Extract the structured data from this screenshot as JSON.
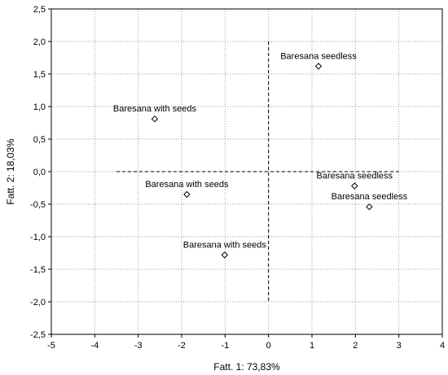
{
  "chart_data": {
    "type": "scatter",
    "xlabel": "Fatt. 1: 73,83%",
    "ylabel": "Fatt. 2: 18,03%",
    "xlim": [
      -5,
      4
    ],
    "ylim": [
      -2.5,
      2.5
    ],
    "x_ticks": [
      -5,
      -4,
      -3,
      -2,
      -1,
      0,
      1,
      2,
      3,
      4
    ],
    "y_ticks": [
      2.5,
      2.0,
      1.5,
      1.0,
      0.5,
      0.0,
      -0.5,
      -1.0,
      -1.5,
      -2.0,
      -2.5
    ],
    "x_tick_labels": [
      "-5",
      "-4",
      "-3",
      "-2",
      "-1",
      "0",
      "1",
      "2",
      "3",
      "4"
    ],
    "y_tick_labels": [
      "2,5",
      "2,0",
      "1,5",
      "1,0",
      "0,5",
      "0,0",
      "-0,5",
      "-1,0",
      "-1,5",
      "-2,0",
      "-2,5"
    ],
    "grid": true,
    "marker": "diamond",
    "points": [
      {
        "x": 1.15,
        "y": 1.62,
        "label": "Baresana seedless"
      },
      {
        "x": -2.62,
        "y": 0.81,
        "label": "Baresana with seeds"
      },
      {
        "x": -1.88,
        "y": -0.35,
        "label": "Baresana with seeds"
      },
      {
        "x": 1.98,
        "y": -0.22,
        "label": "Baresana seedless"
      },
      {
        "x": 2.32,
        "y": -0.54,
        "label": "Baresana seedless"
      },
      {
        "x": -1.01,
        "y": -1.28,
        "label": "Baresana with seeds"
      }
    ]
  }
}
